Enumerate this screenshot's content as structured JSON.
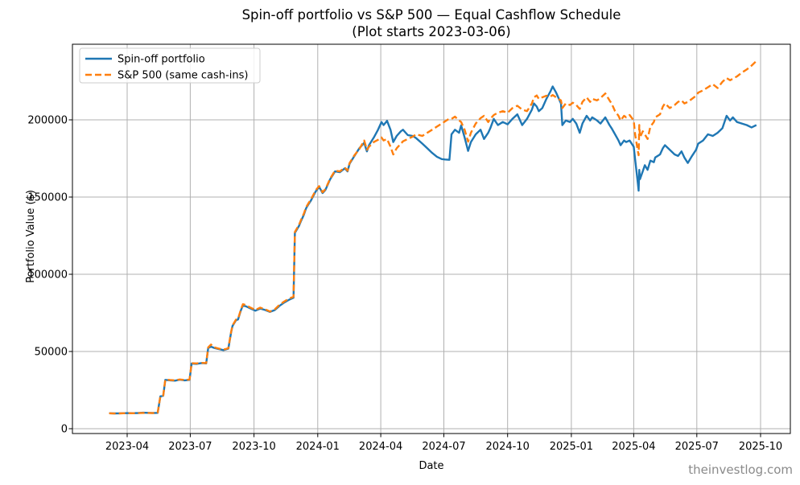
{
  "watermark": "theinvestlog.com",
  "colors": {
    "spinoff_line": "#1f77b4",
    "sp500_line": "#ff7f0e",
    "grid": "#b0b0b0",
    "frame": "#000000",
    "legend_border": "#cccccc",
    "watermark": "#8a8a8a"
  },
  "chart_data": {
    "type": "line",
    "title": "Spin-off portfolio vs S&P 500 — Equal Cashflow Schedule",
    "subtitle": "(Plot starts 2023-03-06)",
    "xlabel": "Date",
    "ylabel": "Portfolio Value ($)",
    "grid": true,
    "legend_position": "upper left",
    "x_ticks": [
      "2023-04",
      "2023-07",
      "2023-10",
      "2024-01",
      "2024-04",
      "2024-07",
      "2024-10",
      "2025-01",
      "2025-04",
      "2025-07",
      "2025-10"
    ],
    "y_ticks": [
      0,
      50000,
      100000,
      150000,
      200000
    ],
    "ylim": [
      -3000,
      249000
    ],
    "xlim": [
      "2023-01-12",
      "2025-11-13"
    ],
    "dates": [
      "2023-03-06",
      "2023-03-13",
      "2023-03-20",
      "2023-03-27",
      "2023-04-03",
      "2023-04-10",
      "2023-04-17",
      "2023-04-24",
      "2023-05-01",
      "2023-05-08",
      "2023-05-15",
      "2023-05-19",
      "2023-05-23",
      "2023-05-26",
      "2023-06-02",
      "2023-06-09",
      "2023-06-16",
      "2023-06-23",
      "2023-06-30",
      "2023-07-03",
      "2023-07-10",
      "2023-07-17",
      "2023-07-24",
      "2023-07-27",
      "2023-07-31",
      "2023-08-04",
      "2023-08-11",
      "2023-08-18",
      "2023-08-25",
      "2023-08-29",
      "2023-08-31",
      "2023-09-05",
      "2023-09-08",
      "2023-09-12",
      "2023-09-15",
      "2023-09-19",
      "2023-09-26",
      "2023-10-03",
      "2023-10-10",
      "2023-10-17",
      "2023-10-24",
      "2023-10-31",
      "2023-11-07",
      "2023-11-14",
      "2023-11-21",
      "2023-11-27",
      "2023-11-29",
      "2023-12-05",
      "2023-12-08",
      "2023-12-12",
      "2023-12-15",
      "2023-12-19",
      "2023-12-22",
      "2023-12-29",
      "2024-01-03",
      "2024-01-08",
      "2024-01-12",
      "2024-01-19",
      "2024-01-26",
      "2024-02-02",
      "2024-02-09",
      "2024-02-13",
      "2024-02-16",
      "2024-02-23",
      "2024-03-01",
      "2024-03-08",
      "2024-03-12",
      "2024-03-15",
      "2024-03-22",
      "2024-03-28",
      "2024-04-02",
      "2024-04-05",
      "2024-04-10",
      "2024-04-15",
      "2024-04-19",
      "2024-04-24",
      "2024-04-30",
      "2024-05-03",
      "2024-05-10",
      "2024-05-17",
      "2024-05-22",
      "2024-05-31",
      "2024-06-07",
      "2024-06-14",
      "2024-06-21",
      "2024-06-28",
      "2024-07-03",
      "2024-07-09",
      "2024-07-12",
      "2024-07-17",
      "2024-07-23",
      "2024-07-26",
      "2024-07-31",
      "2024-08-05",
      "2024-08-09",
      "2024-08-16",
      "2024-08-23",
      "2024-08-28",
      "2024-09-03",
      "2024-09-06",
      "2024-09-11",
      "2024-09-17",
      "2024-09-24",
      "2024-10-01",
      "2024-10-08",
      "2024-10-15",
      "2024-10-22",
      "2024-10-29",
      "2024-11-05",
      "2024-11-08",
      "2024-11-12",
      "2024-11-15",
      "2024-11-20",
      "2024-11-26",
      "2024-12-02",
      "2024-12-05",
      "2024-12-10",
      "2024-12-13",
      "2024-12-17",
      "2024-12-19",
      "2024-12-24",
      "2024-12-30",
      "2025-01-03",
      "2025-01-08",
      "2025-01-13",
      "2025-01-17",
      "2025-01-23",
      "2025-01-28",
      "2025-01-31",
      "2025-02-07",
      "2025-02-12",
      "2025-02-19",
      "2025-02-25",
      "2025-02-28",
      "2025-03-05",
      "2025-03-10",
      "2025-03-13",
      "2025-03-18",
      "2025-03-21",
      "2025-03-26",
      "2025-04-01",
      "2025-04-03",
      "2025-04-07",
      "2025-04-08",
      "2025-04-09",
      "2025-04-10",
      "2025-04-14",
      "2025-04-17",
      "2025-04-21",
      "2025-04-25",
      "2025-04-30",
      "2025-05-02",
      "2025-05-09",
      "2025-05-13",
      "2025-05-16",
      "2025-05-23",
      "2025-05-30",
      "2025-06-04",
      "2025-06-09",
      "2025-06-13",
      "2025-06-18",
      "2025-06-24",
      "2025-06-30",
      "2025-07-03",
      "2025-07-10",
      "2025-07-17",
      "2025-07-24",
      "2025-07-31",
      "2025-08-07",
      "2025-08-13",
      "2025-08-18",
      "2025-08-22",
      "2025-08-28",
      "2025-09-04",
      "2025-09-11",
      "2025-09-18",
      "2025-09-25"
    ],
    "series": [
      {
        "name": "Spin-off portfolio",
        "color": "#1f77b4",
        "style": "solid",
        "values": [
          10000,
          9900,
          9950,
          10050,
          10100,
          10050,
          10150,
          10350,
          10250,
          10150,
          10250,
          21000,
          21300,
          31600,
          31300,
          31100,
          31700,
          31300,
          31600,
          42200,
          42000,
          42500,
          42300,
          52300,
          53100,
          52400,
          51600,
          50900,
          51800,
          62500,
          66500,
          70200,
          70800,
          76500,
          79800,
          79300,
          77800,
          76400,
          77800,
          76900,
          75600,
          76800,
          79600,
          81800,
          83600,
          84800,
          126800,
          131300,
          134600,
          138600,
          142600,
          145600,
          147600,
          153600,
          156600,
          152600,
          154600,
          161600,
          166600,
          166100,
          168600,
          166600,
          171600,
          176600,
          181600,
          185100,
          179600,
          183600,
          188600,
          193600,
          198600,
          196600,
          199400,
          193600,
          185600,
          189600,
          192600,
          193600,
          190100,
          189600,
          188100,
          184600,
          181600,
          178600,
          176100,
          174600,
          174300,
          174100,
          190600,
          193600,
          191600,
          196400,
          188600,
          179900,
          185600,
          190600,
          193600,
          187600,
          191600,
          194600,
          200600,
          196600,
          198600,
          197100,
          200600,
          203600,
          196600,
          200600,
          206600,
          210600,
          208600,
          205600,
          207600,
          213600,
          218600,
          221600,
          217600,
          214600,
          210600,
          196600,
          199600,
          198600,
          200600,
          197600,
          191600,
          197600,
          202600,
          199600,
          201600,
          199600,
          197600,
          201600,
          196600,
          194600,
          190600,
          186600,
          183600,
          186600,
          185600,
          186600,
          182600,
          174600,
          158600,
          154100,
          167600,
          161600,
          166600,
          170600,
          167600,
          173600,
          172600,
          175600,
          177600,
          181600,
          183600,
          180600,
          177600,
          176600,
          179600,
          175600,
          172100,
          176600,
          180600,
          184600,
          186600,
          190600,
          189600,
          191600,
          194600,
          202600,
          199600,
          201600,
          198600,
          197600,
          196600,
          195100,
          196600
        ]
      },
      {
        "name": "S&P 500 (same cash-ins)",
        "color": "#ff7f0e",
        "style": "dashed",
        "values": [
          10000,
          9850,
          9900,
          10000,
          10050,
          10000,
          10100,
          10200,
          10200,
          10100,
          10300,
          21100,
          21500,
          31800,
          31500,
          31300,
          31900,
          31500,
          31800,
          42400,
          42300,
          42600,
          42500,
          52700,
          54500,
          52800,
          51900,
          51200,
          52100,
          62800,
          66800,
          70600,
          71200,
          77000,
          80600,
          80100,
          78400,
          76900,
          78400,
          77400,
          75900,
          77300,
          80300,
          82500,
          84300,
          85400,
          127400,
          132000,
          135300,
          139300,
          143300,
          146300,
          148300,
          154300,
          157100,
          153100,
          155100,
          162100,
          167100,
          166600,
          169100,
          167100,
          172100,
          177100,
          181100,
          186600,
          180600,
          182600,
          185600,
          187100,
          188600,
          186600,
          187600,
          182600,
          177600,
          181600,
          184600,
          186100,
          187600,
          189100,
          190600,
          189600,
          191600,
          193600,
          195600,
          197600,
          199100,
          200800,
          200600,
          202100,
          199600,
          198600,
          193600,
          185900,
          191600,
          197600,
          201100,
          202600,
          198600,
          200600,
          203100,
          204600,
          205600,
          204600,
          207600,
          209100,
          206600,
          205600,
          210600,
          214600,
          215800,
          213600,
          214600,
          215600,
          215100,
          216100,
          214600,
          213600,
          212600,
          207600,
          210600,
          209600,
          211100,
          209600,
          207100,
          211600,
          214600,
          211600,
          213600,
          212600,
          214100,
          217100,
          212600,
          210600,
          205600,
          202600,
          199600,
          202600,
          201600,
          203100,
          199600,
          190600,
          179600,
          177100,
          196600,
          188600,
          192600,
          190600,
          187600,
          195600,
          198600,
          201600,
          203600,
          208600,
          210600,
          207600,
          209600,
          211600,
          212600,
          210600,
          211600,
          213600,
          215600,
          217600,
          219100,
          221100,
          223100,
          220600,
          224600,
          227100,
          225600,
          226600,
          228100,
          230600,
          232600,
          235100,
          238100
        ]
      }
    ]
  }
}
